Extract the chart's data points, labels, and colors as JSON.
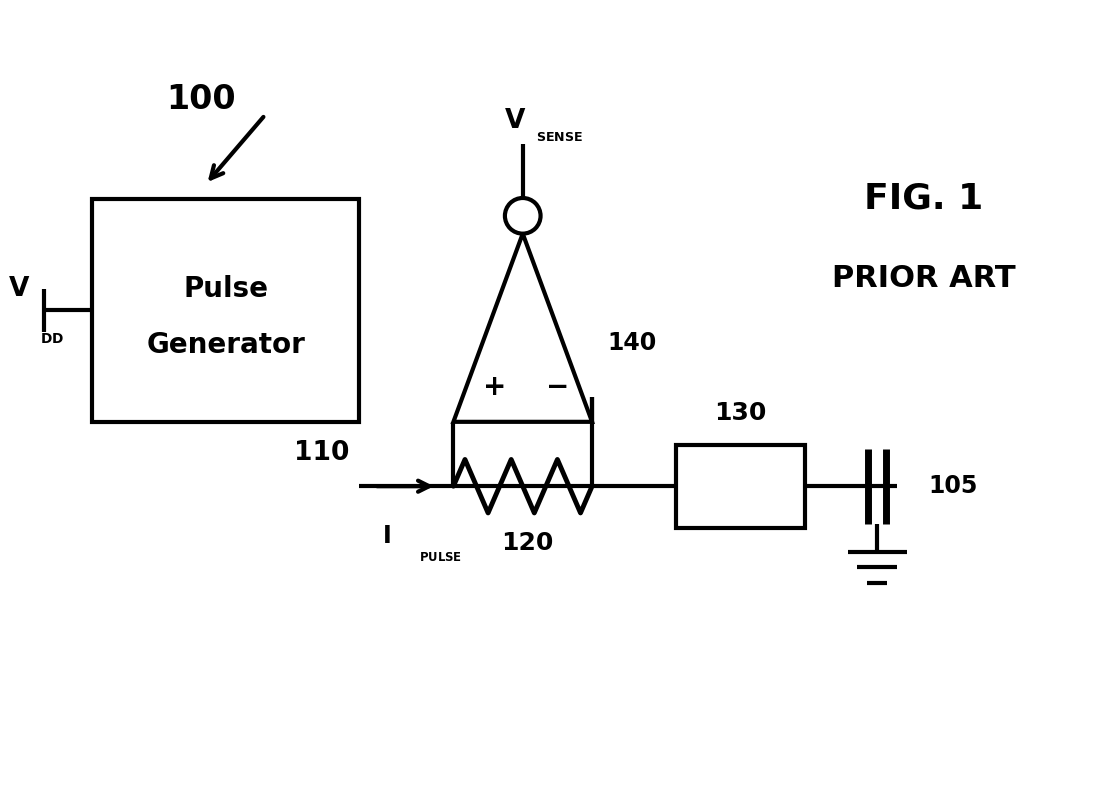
{
  "bg_color": "#ffffff",
  "line_color": "#000000",
  "line_width": 3.0,
  "fig_width": 10.95,
  "fig_height": 8.07,
  "title": "FIG. 1",
  "subtitle": "PRIOR ART",
  "label_100": "100",
  "label_105": "105",
  "label_110": "110",
  "label_120": "120",
  "label_130": "130",
  "label_140": "140",
  "label_vdd_main": "V",
  "label_vdd_sub": "DD",
  "label_vsense_main": "V",
  "label_vsense_sub": "SENSE",
  "label_ipulse_main": "I",
  "label_ipulse_sub": "PULSE",
  "pulse_box_label1": "Pulse",
  "pulse_box_label2": "Generator"
}
